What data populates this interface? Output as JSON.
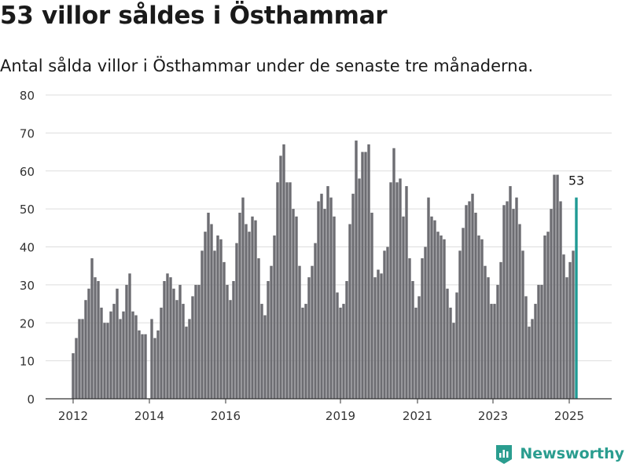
{
  "title": "53 villor såldes i Östhammar",
  "subtitle": "Antal sålda villor i Östhammar under de senaste tre månaderna.",
  "brand": {
    "name": "Newsworthy",
    "icon": "newsworthy-logo-icon",
    "color": "#2a9d8f"
  },
  "colors": {
    "bar": "#6d6d72",
    "highlight": "#1f9a94",
    "grid": "#dddddd",
    "axis": "#333333"
  },
  "chart_data": {
    "type": "bar",
    "x_ticks": [
      "2012",
      "2014",
      "2016",
      "2019",
      "2021",
      "2023",
      "2025"
    ],
    "y_ticks": [
      0,
      10,
      20,
      30,
      40,
      50,
      60,
      70,
      80
    ],
    "ylim": [
      0,
      80
    ],
    "grid": true,
    "values": [
      12,
      16,
      21,
      21,
      26,
      29,
      37,
      32,
      31,
      24,
      20,
      20,
      23,
      25,
      29,
      21,
      23,
      30,
      33,
      23,
      22,
      18,
      17,
      17,
      0,
      21,
      16,
      18,
      24,
      31,
      33,
      32,
      29,
      26,
      30,
      25,
      19,
      21,
      27,
      30,
      30,
      39,
      44,
      49,
      46,
      39,
      43,
      42,
      36,
      30,
      26,
      31,
      41,
      49,
      53,
      46,
      44,
      48,
      47,
      37,
      25,
      22,
      31,
      35,
      43,
      57,
      64,
      67,
      57,
      57,
      50,
      48,
      35,
      24,
      25,
      32,
      35,
      41,
      52,
      54,
      50,
      56,
      53,
      48,
      28,
      24,
      25,
      31,
      46,
      54,
      68,
      58,
      65,
      65,
      67,
      49,
      32,
      34,
      33,
      39,
      40,
      57,
      66,
      57,
      58,
      48,
      56,
      37,
      31,
      24,
      27,
      37,
      40,
      53,
      48,
      47,
      44,
      43,
      42,
      29,
      24,
      20,
      28,
      39,
      45,
      51,
      52,
      54,
      49,
      43,
      42,
      35,
      32,
      25,
      25,
      30,
      36,
      51,
      52,
      56,
      50,
      53,
      46,
      39,
      27,
      19,
      21,
      25,
      30,
      30,
      43,
      44,
      50,
      59,
      59,
      52,
      38,
      32,
      36,
      39,
      53
    ],
    "highlight_label": "53"
  }
}
